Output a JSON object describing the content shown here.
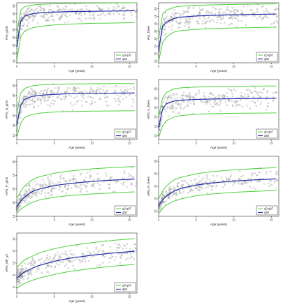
{
  "chart_data": [
    {
      "type": "scatter",
      "ylabel": "HVI_gmls",
      "xlabel": "Age (years)",
      "xlim": [
        0,
        16
      ],
      "ylim": [
        14,
        52
      ],
      "xticks": [
        0,
        5,
        10,
        15
      ],
      "yticks": [
        15,
        20,
        25,
        30,
        35,
        40,
        45,
        50
      ],
      "legend": [
        "q3-q97",
        "q50"
      ],
      "curves": {
        "q03": [
          15,
          30,
          34,
          36,
          37,
          38,
          38.5,
          39,
          39.2,
          39.5
        ],
        "q50": [
          24,
          40,
          43.5,
          45,
          45.6,
          46.1,
          46.4,
          46.6,
          46.8,
          47
        ],
        "q97": [
          32,
          47,
          49.5,
          50.5,
          51,
          51.4,
          51.6,
          51.8,
          51.9,
          52
        ]
      },
      "curve_x": [
        0,
        0.5,
        1,
        2,
        3,
        5,
        7,
        10,
        13,
        16
      ],
      "legend_placement": "bottom-right"
    },
    {
      "type": "scatter",
      "ylabel": "HVI_frees",
      "xlabel": "Age (years)",
      "xlim": [
        0,
        16
      ],
      "ylim": [
        14,
        54
      ],
      "xticks": [
        0,
        5,
        10,
        15
      ],
      "yticks": [
        15,
        20,
        25,
        30,
        35,
        40,
        45,
        50
      ],
      "legend": [
        "q3-q97",
        "q50"
      ],
      "curves": {
        "q03": [
          14.5,
          27,
          31,
          34.5,
          35.5,
          36.3,
          36.8,
          37.2,
          37.5,
          37.8
        ],
        "q50": [
          22,
          38,
          41,
          43.5,
          44.5,
          45.2,
          45.6,
          46,
          46.3,
          46.5
        ],
        "q97": [
          30,
          46,
          49,
          51,
          51.7,
          52.3,
          52.6,
          52.9,
          53.1,
          53.3
        ]
      },
      "curve_x": [
        0,
        0.5,
        1,
        2,
        3,
        5,
        7,
        10,
        13,
        16
      ],
      "legend_placement": "bottom-right"
    },
    {
      "type": "scatter",
      "ylabel": "APD_D_gms",
      "xlabel": "Age (years)",
      "xlim": [
        0,
        16
      ],
      "ylim": [
        8,
        38
      ],
      "xticks": [
        0,
        5,
        10,
        15
      ],
      "yticks": [
        10,
        15,
        20,
        25,
        30,
        35
      ],
      "legend": [
        "q3-q97",
        "q50"
      ],
      "curves": {
        "q03": [
          9,
          16,
          19,
          20.5,
          21.2,
          21.8,
          22,
          22.2,
          22.3,
          22.4
        ],
        "q50": [
          15,
          25,
          28,
          29.5,
          30.1,
          30.6,
          30.9,
          31.1,
          31.2,
          31.3
        ],
        "q97": [
          21,
          31,
          33.5,
          34.8,
          35.3,
          35.6,
          35.8,
          35.9,
          36,
          36
        ]
      },
      "curve_x": [
        0,
        0.5,
        1,
        2,
        3,
        5,
        7,
        10,
        13,
        16
      ],
      "legend_placement": "bottom-right"
    },
    {
      "type": "scatter",
      "ylabel": "APD_V_frees",
      "xlabel": "Age (years)",
      "xlim": [
        0,
        16
      ],
      "ylim": [
        8,
        40
      ],
      "xticks": [
        0,
        5,
        10,
        15
      ],
      "yticks": [
        10,
        15,
        20,
        25,
        30,
        35
      ],
      "legend": [
        "q3-q97",
        "q50"
      ],
      "curves": {
        "q03": [
          9,
          15,
          18,
          20,
          20.8,
          21.5,
          21.8,
          22,
          22.1,
          22.2
        ],
        "q50": [
          14,
          24,
          27,
          28.5,
          29,
          29.4,
          29.6,
          29.8,
          29.9,
          30
        ],
        "q97": [
          20,
          30,
          33,
          35,
          35.6,
          36,
          36.2,
          36.4,
          36.5,
          36.6
        ]
      },
      "curve_x": [
        0,
        0.5,
        1,
        2,
        3,
        5,
        7,
        10,
        13,
        16
      ],
      "legend_placement": "bottom-right"
    },
    {
      "type": "scatter",
      "ylabel": "APD_P_gms",
      "xlabel": "Age (years)",
      "xlim": [
        0,
        16
      ],
      "ylim": [
        10,
        32
      ],
      "xticks": [
        0,
        5,
        10,
        15
      ],
      "yticks": [
        10,
        15,
        20,
        25,
        30
      ],
      "legend": [
        "q3-q97",
        "q50"
      ],
      "curves": {
        "q03": [
          11,
          12.5,
          13.5,
          15,
          16,
          17,
          17.6,
          18.2,
          18.6,
          19
        ],
        "q50": [
          13.5,
          15.5,
          17,
          19,
          20,
          21.3,
          22,
          22.8,
          23.3,
          23.7
        ],
        "q97": [
          16.5,
          19,
          21,
          23.3,
          24.5,
          25.8,
          26.6,
          27.4,
          27.9,
          28.3
        ]
      },
      "curve_x": [
        0,
        0.5,
        1,
        2,
        3,
        5,
        7,
        10,
        13,
        16
      ],
      "legend_placement": "bottom-right"
    },
    {
      "type": "scatter",
      "ylabel": "APD_P_frees",
      "xlabel": "Age (years)",
      "xlim": [
        0,
        16
      ],
      "ylim": [
        8,
        32
      ],
      "xticks": [
        0,
        5,
        10,
        15
      ],
      "yticks": [
        10,
        15,
        20,
        25,
        30
      ],
      "legend": [
        "q3-q97",
        "q50"
      ],
      "curves": {
        "q03": [
          9,
          11,
          12.5,
          14,
          15,
          16.2,
          16.9,
          17.6,
          18,
          18.4
        ],
        "q50": [
          12,
          14.5,
          16,
          18,
          19.2,
          20.5,
          21.3,
          22.1,
          22.6,
          23
        ],
        "q97": [
          15,
          18,
          20,
          22.5,
          23.6,
          25,
          25.8,
          26.6,
          27.1,
          27.5
        ]
      },
      "curve_x": [
        0,
        0.5,
        1,
        2,
        3,
        5,
        7,
        10,
        13,
        16
      ],
      "legend_placement": "bottom-right"
    },
    {
      "type": "scatter",
      "ylabel": "APD_MF_ys",
      "xlabel": "Age (years)",
      "xlim": [
        0,
        16
      ],
      "ylim": [
        5,
        15
      ],
      "xticks": [
        0,
        5,
        10,
        15
      ],
      "yticks": [
        6,
        8,
        10,
        12,
        14
      ],
      "legend": [
        "q3-q97",
        "q50"
      ],
      "curves": {
        "q03": [
          5.8,
          6.2,
          6.6,
          7.1,
          7.5,
          8.1,
          8.6,
          9.1,
          9.5,
          9.8
        ],
        "q50": [
          7.5,
          8,
          8.5,
          9.1,
          9.6,
          10.3,
          10.8,
          11.3,
          11.7,
          12
        ],
        "q97": [
          9.3,
          9.9,
          10.5,
          11.1,
          11.7,
          12.4,
          12.9,
          13.4,
          13.8,
          14.1
        ]
      },
      "curve_x": [
        0,
        0.5,
        1,
        2,
        3,
        5,
        7,
        10,
        13,
        16
      ],
      "legend_placement": "bottom-right"
    }
  ]
}
